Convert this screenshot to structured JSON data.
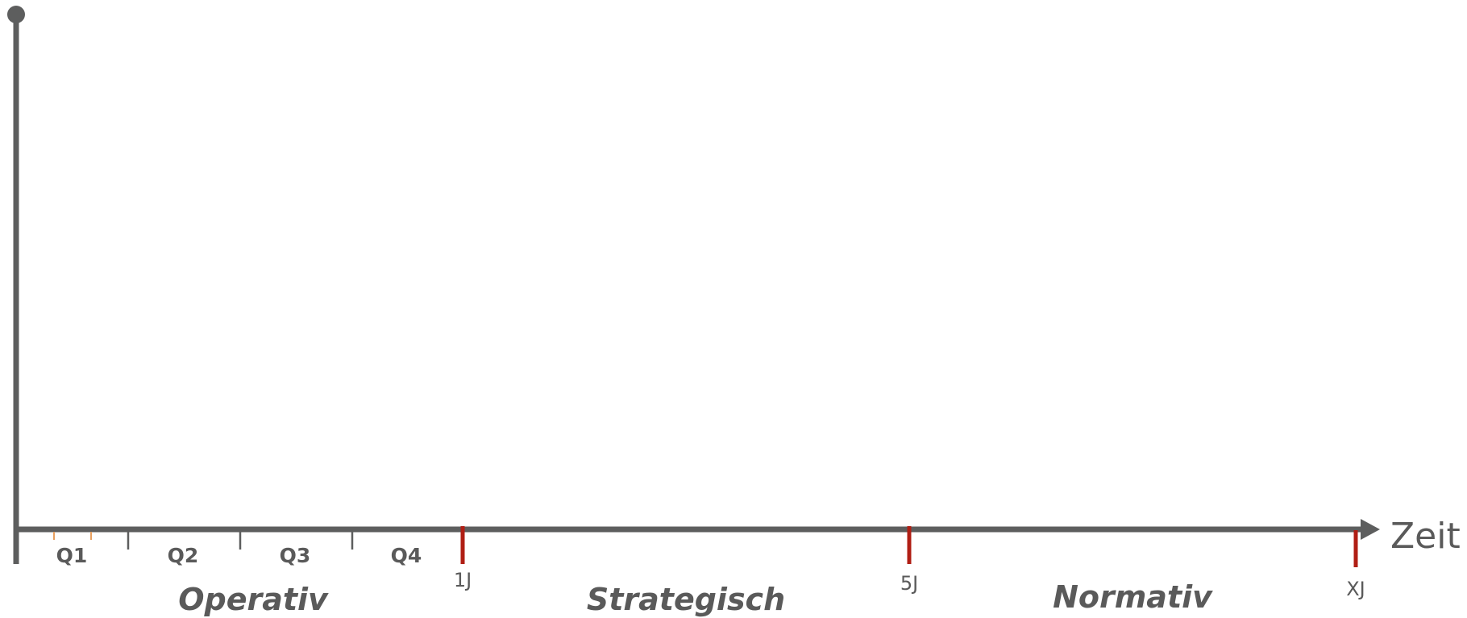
{
  "diagram": {
    "x_axis_label": "Zeit",
    "quarters": [
      "Q1",
      "Q2",
      "Q3",
      "Q4"
    ],
    "years": [
      "1J",
      "5J",
      "XJ"
    ],
    "phases": [
      "Operativ",
      "Strategisch",
      "Normativ"
    ]
  },
  "colors": {
    "axis": "#5d5e5e",
    "year_tick": "#b01e14",
    "sub_tick": "#e8a060",
    "text": "#5a5a5a"
  }
}
